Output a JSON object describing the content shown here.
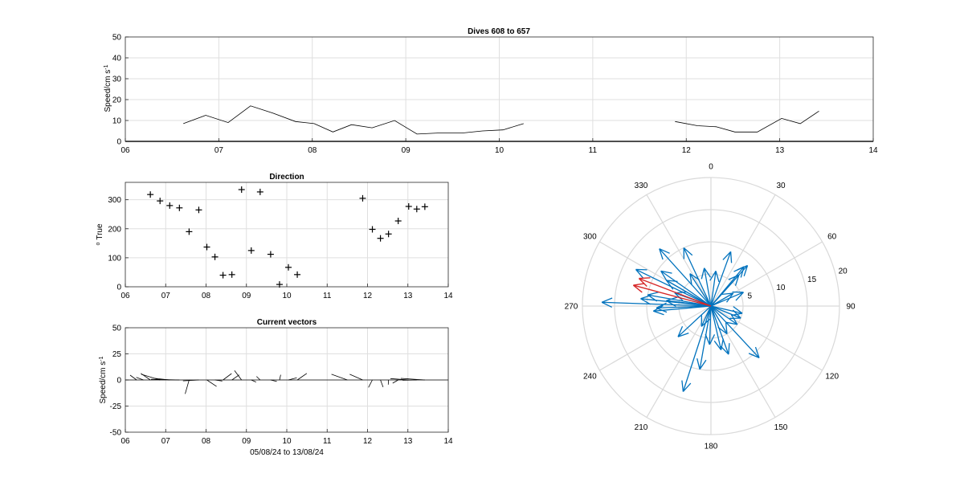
{
  "colors": {
    "speed_line": "#000000",
    "vector": "#0072BD",
    "mean_vector": "#D62728",
    "grid": "#dfdfdf"
  },
  "chart_data": [
    {
      "id": "speed",
      "type": "line",
      "title": "Dives 608 to 657",
      "xlabel": "",
      "ylabel": "Speed/cm s",
      "ylabel_sup": "-1",
      "xlim": [
        6,
        14
      ],
      "ylim": [
        0,
        50
      ],
      "xticks": [
        6,
        7,
        8,
        9,
        10,
        11,
        12,
        13,
        14
      ],
      "xticklabels": [
        "06",
        "07",
        "08",
        "09",
        "10",
        "11",
        "12",
        "13",
        "14"
      ],
      "yticks": [
        0,
        10,
        20,
        30,
        40,
        50
      ],
      "grid": true,
      "segments": [
        {
          "x": [
            6.62,
            6.86,
            7.1,
            7.34,
            7.58,
            7.82,
            8.02,
            8.22,
            8.42,
            8.64,
            8.88,
            9.12,
            9.34,
            9.6,
            9.82,
            10.04,
            10.26
          ],
          "y": [
            8.5,
            12.5,
            9,
            17,
            13.5,
            9.5,
            8.5,
            4.5,
            8,
            6.5,
            10,
            3.5,
            4,
            4,
            5,
            5.5,
            8.5
          ]
        },
        {
          "x": [
            11.88,
            12.12,
            12.32,
            12.52,
            12.76,
            13.02,
            13.22,
            13.42
          ],
          "y": [
            9.5,
            7.5,
            7,
            4.5,
            4.5,
            11,
            8.5,
            14.5
          ]
        }
      ]
    },
    {
      "id": "direction",
      "type": "scatter",
      "title": "Direction",
      "xlabel": "",
      "ylabel": "True",
      "ylabel_pre": "o",
      "xlim": [
        6,
        14
      ],
      "ylim": [
        0,
        360
      ],
      "xticks": [
        6,
        7,
        8,
        9,
        10,
        11,
        12,
        13,
        14
      ],
      "xticklabels": [
        "06",
        "07",
        "08",
        "09",
        "10",
        "11",
        "12",
        "13",
        "14"
      ],
      "yticks": [
        0,
        100,
        200,
        300
      ],
      "grid": true,
      "marker": "+",
      "x": [
        6.62,
        6.86,
        7.1,
        7.34,
        7.58,
        7.82,
        8.02,
        8.22,
        8.42,
        8.64,
        8.88,
        9.12,
        9.34,
        9.6,
        9.82,
        10.04,
        10.26,
        11.88,
        12.12,
        12.32,
        12.52,
        12.76,
        13.02,
        13.22,
        13.42
      ],
      "y": [
        318,
        296,
        280,
        272,
        190,
        265,
        137,
        103,
        40,
        42,
        335,
        125,
        327,
        112,
        8,
        67,
        42,
        305,
        198,
        167,
        182,
        227,
        277,
        268,
        276
      ]
    },
    {
      "id": "vectors",
      "type": "line",
      "title": "Current vectors",
      "xlabel": "05/08/24 to 13/08/24",
      "ylabel": "Speed/cm s",
      "ylabel_sup": "-1",
      "xlim": [
        6,
        14
      ],
      "ylim": [
        -50,
        50
      ],
      "xticks": [
        6,
        7,
        8,
        9,
        10,
        11,
        12,
        13,
        14
      ],
      "xticklabels": [
        "06",
        "07",
        "08",
        "09",
        "10",
        "11",
        "12",
        "13",
        "14"
      ],
      "yticks": [
        -50,
        -25,
        0,
        25,
        50
      ],
      "grid": true,
      "origins_x": [
        6.28,
        6.45,
        6.62,
        6.86,
        7.1,
        7.34,
        7.58,
        7.82,
        8.02,
        8.22,
        8.42,
        8.64,
        8.88,
        9.12,
        9.34,
        9.6,
        9.82,
        10.04,
        10.26,
        11.5,
        11.88,
        12.12,
        12.32,
        12.52,
        12.76,
        13.02,
        13.22,
        13.42
      ],
      "speeds": [
        6,
        5,
        8.5,
        12.5,
        9,
        17,
        13.5,
        9.5,
        8.5,
        4.5,
        8,
        6.5,
        10,
        3.5,
        4,
        4,
        5,
        5.5,
        8.5,
        11,
        9.5,
        7.5,
        7,
        4.5,
        4.5,
        11,
        8.5,
        14.5
      ],
      "directions_deg": [
        320,
        300,
        318,
        296,
        280,
        272,
        190,
        265,
        137,
        103,
        40,
        42,
        335,
        125,
        327,
        112,
        8,
        67,
        42,
        300,
        305,
        198,
        167,
        182,
        227,
        277,
        268,
        276
      ]
    },
    {
      "id": "polar",
      "type": "line",
      "title": "",
      "theta_zero": "top",
      "theta_direction": "clockwise",
      "theta_ticks": [
        0,
        30,
        60,
        90,
        120,
        150,
        180,
        210,
        240,
        270,
        300,
        330
      ],
      "theta_ticklabels": [
        "0",
        "30",
        "60",
        "90",
        "120",
        "150",
        "180",
        "210",
        "240",
        "270",
        "300",
        "330"
      ],
      "rlim": [
        0,
        20
      ],
      "r_ticks": [
        5,
        10,
        15,
        20
      ],
      "r_ticklabels": [
        "5",
        "10",
        "15",
        "20"
      ],
      "r_label_angle_deg": 75,
      "vectors_deg": [
        318,
        296,
        280,
        272,
        190,
        265,
        137,
        103,
        40,
        42,
        335,
        125,
        327,
        112,
        8,
        67,
        42,
        305,
        198,
        167,
        182,
        227,
        277,
        268,
        276,
        300,
        350,
        20,
        60,
        150,
        160,
        205,
        290
      ],
      "vectors_speed": [
        12,
        13,
        10,
        17,
        10,
        9,
        11,
        5,
        8,
        6.5,
        10,
        5,
        6,
        5,
        5.5,
        5.5,
        8.5,
        9.5,
        14,
        7,
        6,
        7,
        7,
        8.5,
        11,
        8,
        6,
        9,
        4,
        5,
        8,
        3.5,
        6
      ],
      "mean_vectors": [
        {
          "deg": 285,
          "speed": 12.5
        },
        {
          "deg": 291,
          "speed": 12
        }
      ]
    }
  ]
}
